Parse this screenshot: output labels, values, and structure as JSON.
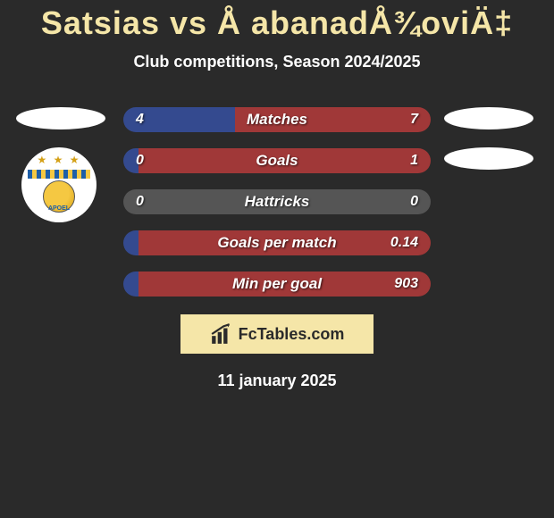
{
  "title": "Satsias vs Å abanadÅ¾oviÄ‡",
  "subtitle": "Club competitions, Season 2024/2025",
  "date": "11 january 2025",
  "brand_text": "FcTables.com",
  "colors": {
    "background": "#2a2a2a",
    "accent": "#f5e6a8",
    "left_bar": "#344a8f",
    "right_bar": "#a03838",
    "neutral_bar": "#555555",
    "white": "#ffffff"
  },
  "left_player": {
    "club_name": "APOEL",
    "has_badge": true
  },
  "right_player": {
    "has_badge": false
  },
  "stats": [
    {
      "label": "Matches",
      "left_value": "4",
      "right_value": "7",
      "left_pct": 36.4,
      "right_pct": 63.6,
      "left_color": "#344a8f",
      "right_color": "#a03838"
    },
    {
      "label": "Goals",
      "left_value": "0",
      "right_value": "1",
      "left_pct": 5,
      "right_pct": 95,
      "left_color": "#344a8f",
      "right_color": "#a03838"
    },
    {
      "label": "Hattricks",
      "left_value": "0",
      "right_value": "0",
      "left_pct": 50,
      "right_pct": 50,
      "left_color": "#555555",
      "right_color": "#555555"
    },
    {
      "label": "Goals per match",
      "left_value": "",
      "right_value": "0.14",
      "left_pct": 5,
      "right_pct": 95,
      "left_color": "#344a8f",
      "right_color": "#a03838"
    },
    {
      "label": "Min per goal",
      "left_value": "",
      "right_value": "903",
      "left_pct": 5,
      "right_pct": 95,
      "left_color": "#344a8f",
      "right_color": "#a03838"
    }
  ]
}
